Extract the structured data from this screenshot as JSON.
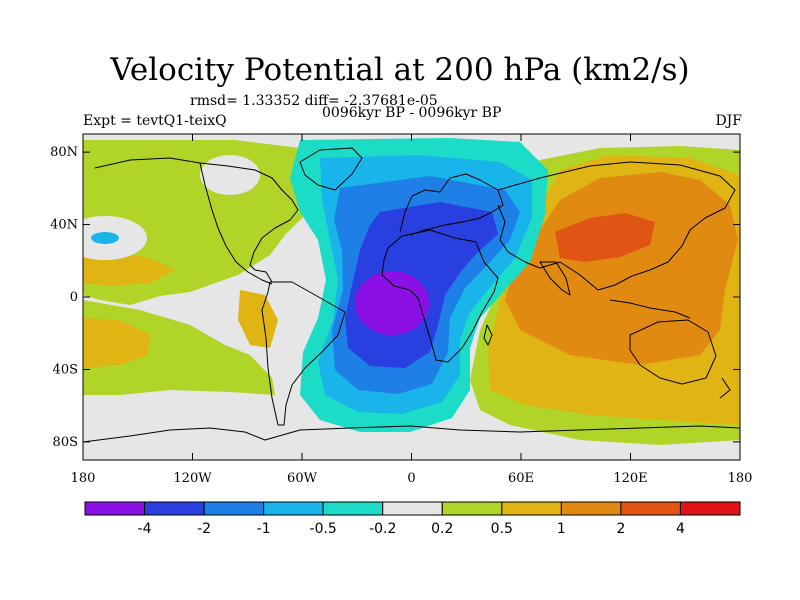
{
  "title": "Velocity Potential at 200 hPa (km2/s)",
  "stats": "rmsd= 1.33352 diff= -2.37681e-05",
  "period": "0096kyr BP - 0096kyr BP",
  "left_label": "Expt = tevtQ1-teixQ",
  "right_label": "DJF",
  "map": {
    "projection": "cylindrical equidistant",
    "lon_range": [
      -180,
      180
    ],
    "lat_range": [
      -90,
      90
    ],
    "lat_ticks": [
      {
        "value": 80,
        "label": "80N"
      },
      {
        "value": 40,
        "label": "40N"
      },
      {
        "value": 0,
        "label": "0"
      },
      {
        "value": -40,
        "label": "40S"
      },
      {
        "value": -80,
        "label": "80S"
      }
    ],
    "lon_ticks": [
      {
        "value": -180,
        "label": "180"
      },
      {
        "value": -120,
        "label": "120W"
      },
      {
        "value": -60,
        "label": "60W"
      },
      {
        "value": 0,
        "label": "0"
      },
      {
        "value": 60,
        "label": "60E"
      },
      {
        "value": 120,
        "label": "120E"
      },
      {
        "value": 180,
        "label": "180"
      }
    ],
    "background_color": "#e6e6e6"
  },
  "colorbar": {
    "colors": [
      "#8a10e6",
      "#2a3fe0",
      "#1e7fe6",
      "#19b4ea",
      "#1cdcc8",
      "#e6e6e6",
      "#b0d428",
      "#e0b412",
      "#e08a12",
      "#e05414",
      "#e01414"
    ],
    "labels": [
      "-4",
      "-2",
      "-1",
      "-0.5",
      "-0.2",
      "0.2",
      "0.5",
      "1",
      "2",
      "4"
    ]
  }
}
